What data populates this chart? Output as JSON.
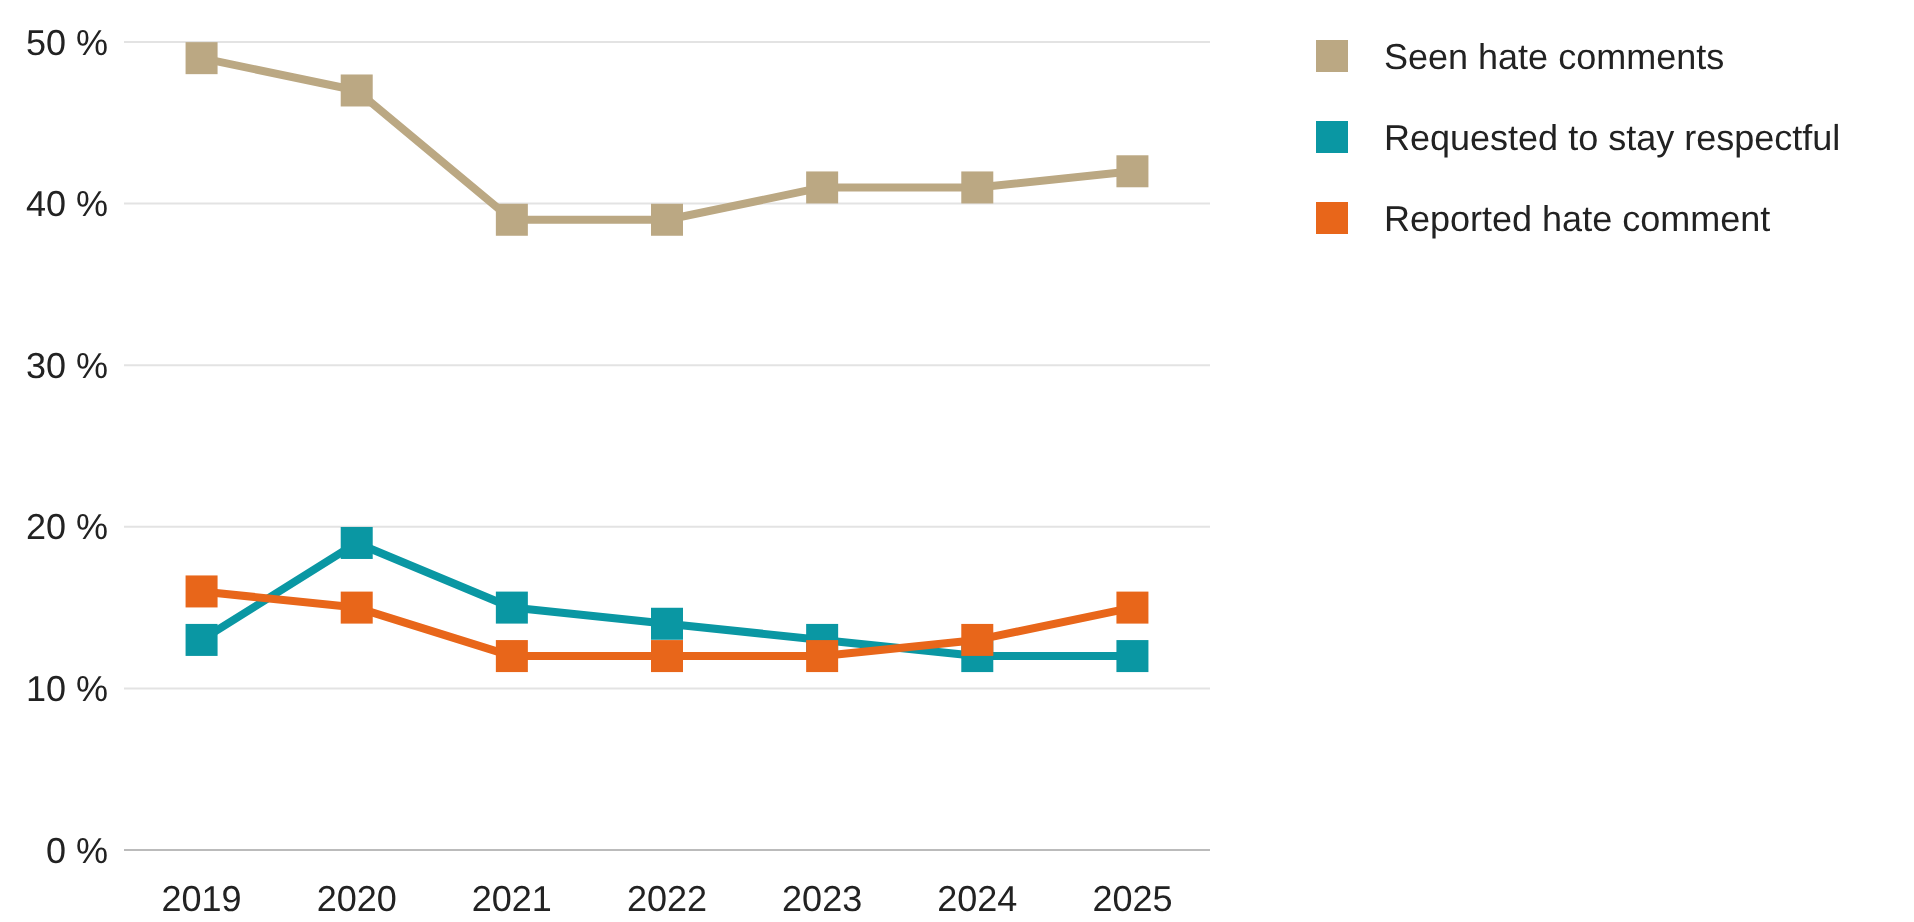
{
  "chart_data": {
    "type": "line",
    "categories": [
      "2019",
      "2020",
      "2021",
      "2022",
      "2023",
      "2024",
      "2025"
    ],
    "series": [
      {
        "name": "Seen hate comments",
        "color": "#bba883",
        "values": [
          49,
          47,
          39,
          39,
          41,
          41,
          42
        ]
      },
      {
        "name": "Requested to stay respectful",
        "color": "#0a97a3",
        "values": [
          13,
          19,
          15,
          14,
          13,
          12,
          12
        ]
      },
      {
        "name": "Reported hate comment",
        "color": "#e8661a",
        "values": [
          16,
          15,
          12,
          12,
          12,
          13,
          15
        ]
      }
    ],
    "ylim": [
      0,
      50
    ],
    "yticks": [
      {
        "value": 0,
        "label": "0 %"
      },
      {
        "value": 10,
        "label": "10 %"
      },
      {
        "value": 20,
        "label": "20 %"
      },
      {
        "value": 30,
        "label": "30 %"
      },
      {
        "value": 40,
        "label": "40 %"
      },
      {
        "value": 50,
        "label": "50 %"
      }
    ],
    "grid": "y",
    "legend": "right",
    "marker": "square",
    "line_style": "solid"
  }
}
